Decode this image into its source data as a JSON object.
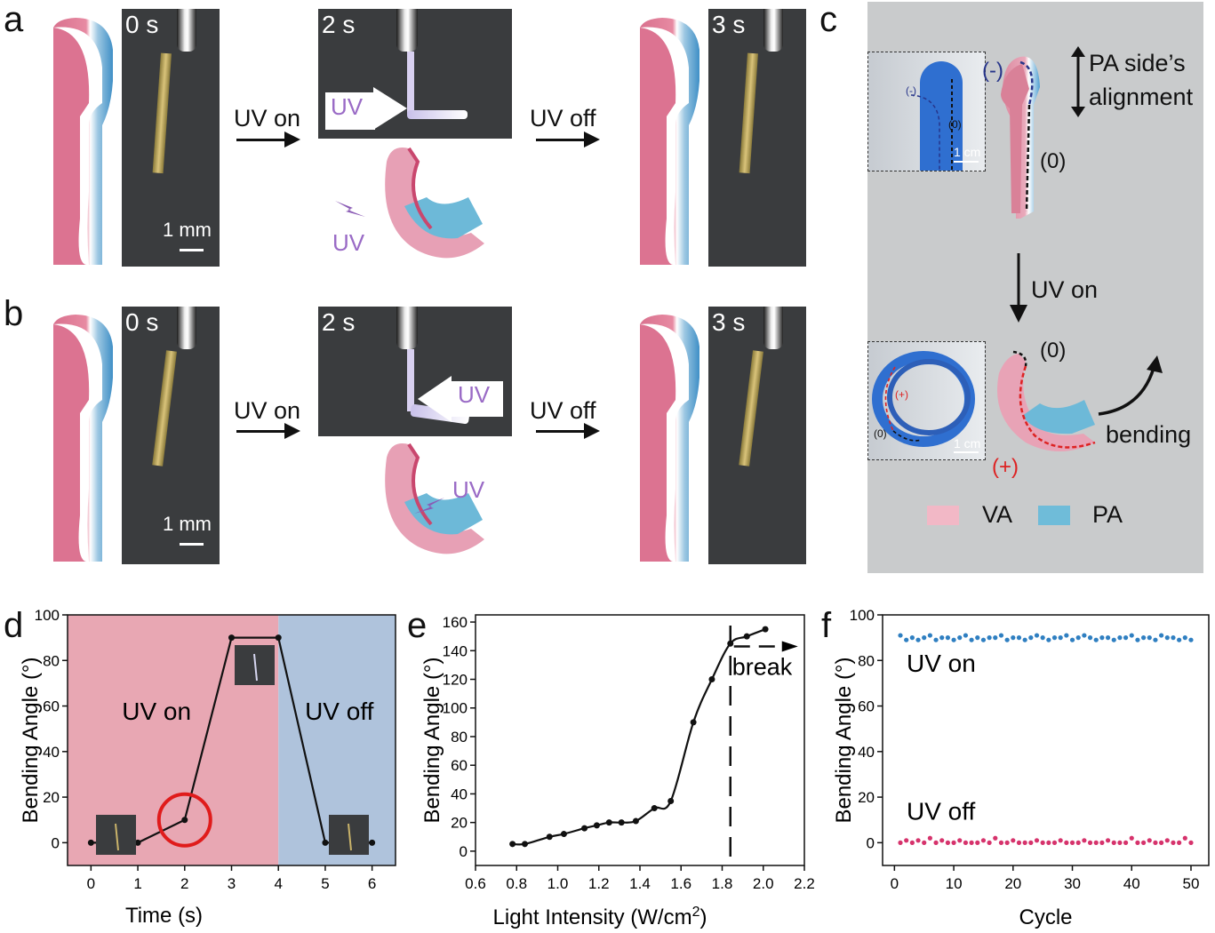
{
  "panel_labels": {
    "a": "a",
    "b": "b",
    "c": "c",
    "d": "d",
    "e": "e",
    "f": "f"
  },
  "row_a": {
    "t0": "0 s",
    "t1": "2 s",
    "t2": "3 s",
    "scale": "1 mm",
    "uv_on": "UV on",
    "uv_off": "UV off",
    "uv_arrow": "UV",
    "uv_schematic": "UV"
  },
  "row_b": {
    "t0": "0 s",
    "t1": "2 s",
    "t2": "3 s",
    "scale": "1 mm",
    "uv_on": "UV on",
    "uv_off": "UV off",
    "uv_arrow": "UV",
    "uv_schematic": "UV"
  },
  "panel_c": {
    "pa_side_line1": "PA side’s",
    "pa_side_line2": "alignment",
    "minus": "(-)",
    "zero_top": "(0)",
    "inset_minus": "(-)",
    "inset_zero": "(0)",
    "inset_scale": "1 cm",
    "uv_on": "UV on",
    "zero_bottom": "(0)",
    "plus": "(+)",
    "inset2_plus": "(+)",
    "inset2_zero": "(0)",
    "inset2_scale": "1 cm",
    "bending": "bending",
    "legend_va": "VA",
    "legend_pa": "PA",
    "colors": {
      "background": "#c9cbcc",
      "va": "#f2b8c6",
      "pa": "#6fbcd9"
    }
  },
  "chart_data": [
    {
      "panel": "d",
      "type": "line",
      "xlabel": "Time (s)",
      "ylabel": "Bending Angle (°)",
      "xlim": [
        -0.5,
        6.5
      ],
      "ylim": [
        -10,
        100
      ],
      "xticks": [
        0,
        1,
        2,
        3,
        4,
        5,
        6
      ],
      "yticks": [
        0,
        20,
        40,
        60,
        80,
        100
      ],
      "x": [
        0,
        1,
        2,
        3,
        4,
        5,
        6
      ],
      "y": [
        0,
        0,
        10,
        90,
        90,
        0,
        0
      ],
      "regions": [
        {
          "label": "UV on",
          "from": -0.5,
          "to": 4,
          "color": "#e8a7b3"
        },
        {
          "label": "UV off",
          "from": 4,
          "to": 6.5,
          "color": "#afc3dc"
        }
      ],
      "highlight_circle_at": [
        2,
        10
      ]
    },
    {
      "panel": "e",
      "type": "line",
      "xlabel": "Light Intensity (W/cm²)",
      "ylabel": "Bending Angle (°)",
      "xlim": [
        0.6,
        2.2
      ],
      "ylim": [
        -10,
        165
      ],
      "xticks": [
        0.6,
        0.8,
        1.0,
        1.2,
        1.4,
        1.6,
        1.8,
        2.0,
        2.2
      ],
      "xtick_labels": [
        "0.6",
        "0.8",
        "1.0",
        "1.2",
        "1.4",
        "1.6",
        "1.8",
        "2.0",
        "2.2"
      ],
      "yticks": [
        0,
        20,
        40,
        60,
        80,
        100,
        120,
        140,
        160
      ],
      "x": [
        0.78,
        0.84,
        0.96,
        1.03,
        1.13,
        1.19,
        1.25,
        1.31,
        1.38,
        1.47,
        1.55,
        1.66,
        1.75,
        1.84,
        1.92,
        2.01
      ],
      "y": [
        5,
        5,
        10,
        12,
        16,
        18,
        20,
        20,
        21,
        30,
        35,
        90,
        120,
        145,
        150,
        155
      ],
      "threshold_x": 1.84,
      "annotation": "break"
    },
    {
      "panel": "f",
      "type": "scatter",
      "xlabel": "Cycle",
      "ylabel": "Bending Angle (°)",
      "xlim": [
        -2,
        53
      ],
      "ylim": [
        -10,
        100
      ],
      "xticks": [
        0,
        10,
        20,
        30,
        40,
        50
      ],
      "yticks": [
        0,
        20,
        40,
        60,
        80,
        100
      ],
      "series": [
        {
          "name": "UV on",
          "color": "#2f7fc1",
          "x": [
            1,
            2,
            3,
            4,
            5,
            6,
            7,
            8,
            9,
            10,
            11,
            12,
            13,
            14,
            15,
            16,
            17,
            18,
            19,
            20,
            21,
            22,
            23,
            24,
            25,
            26,
            27,
            28,
            29,
            30,
            31,
            32,
            33,
            34,
            35,
            36,
            37,
            38,
            39,
            40,
            41,
            42,
            43,
            44,
            45,
            46,
            47,
            48,
            49,
            50
          ],
          "values": [
            91,
            89,
            90,
            89,
            90,
            91,
            89,
            90,
            90,
            89,
            90,
            91,
            89,
            90,
            89,
            90,
            90,
            91,
            89,
            90,
            90,
            89,
            90,
            91,
            90,
            89,
            90,
            90,
            91,
            89,
            90,
            91,
            90,
            89,
            90,
            90,
            89,
            90,
            90,
            91,
            89,
            90,
            90,
            89,
            91,
            90,
            90,
            89,
            90,
            89
          ]
        },
        {
          "name": "UV off",
          "color": "#d6336c",
          "x": [
            1,
            2,
            3,
            4,
            5,
            6,
            7,
            8,
            9,
            10,
            11,
            12,
            13,
            14,
            15,
            16,
            17,
            18,
            19,
            20,
            21,
            22,
            23,
            24,
            25,
            26,
            27,
            28,
            29,
            30,
            31,
            32,
            33,
            34,
            35,
            36,
            37,
            38,
            39,
            40,
            41,
            42,
            43,
            44,
            45,
            46,
            47,
            48,
            49,
            50
          ],
          "values": [
            0,
            1,
            0,
            1,
            0,
            2,
            0,
            1,
            0,
            0,
            1,
            0,
            0,
            0,
            1,
            0,
            2,
            0,
            0,
            1,
            0,
            0,
            0,
            1,
            0,
            0,
            0,
            1,
            0,
            0,
            0,
            1,
            0,
            0,
            0,
            1,
            0,
            0,
            0,
            2,
            0,
            0,
            1,
            0,
            0,
            1,
            0,
            0,
            2,
            0
          ]
        }
      ]
    }
  ]
}
